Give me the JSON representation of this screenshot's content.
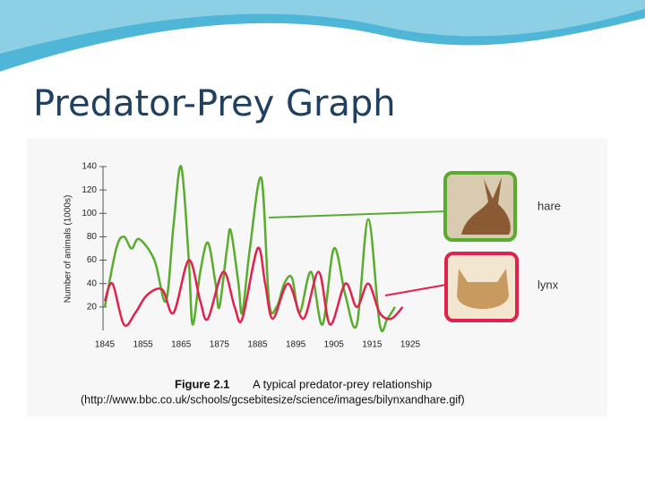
{
  "slide_title": "Predator-Prey Graph",
  "chart_data": {
    "type": "line",
    "ylabel": "Number of animals (1000s)",
    "caption_label": "Figure 2.1",
    "caption": "A typical predator-prey relationship",
    "source": "(http://www.bbc.co.uk/schools/gcsebitesize/science/images/bilynxandhare.gif)",
    "xlim": [
      1845,
      1925
    ],
    "xticks": [
      1845,
      1855,
      1865,
      1875,
      1885,
      1895,
      1905,
      1915,
      1925
    ],
    "ylim": [
      0,
      140
    ],
    "yticks": [
      20,
      40,
      60,
      80,
      100,
      120,
      140
    ],
    "series": [
      {
        "name": "hare",
        "color": "#5aac2e",
        "x": [
          1845,
          1848,
          1850,
          1852,
          1854,
          1858,
          1861,
          1863,
          1865,
          1867,
          1868,
          1870,
          1872,
          1874,
          1875,
          1877,
          1878,
          1880,
          1881,
          1883,
          1886,
          1888,
          1890,
          1892,
          1894,
          1896,
          1899,
          1902,
          1905,
          1908,
          1911,
          1914,
          1917,
          1919,
          1921
        ],
        "values": [
          20,
          70,
          80,
          70,
          78,
          60,
          25,
          90,
          140,
          60,
          5,
          50,
          75,
          40,
          20,
          70,
          85,
          40,
          15,
          70,
          130,
          25,
          20,
          40,
          45,
          15,
          50,
          5,
          70,
          30,
          5,
          95,
          5,
          10,
          20
        ]
      },
      {
        "name": "lynx",
        "color": "#e0234e",
        "x": [
          1845,
          1847,
          1850,
          1853,
          1856,
          1860,
          1863,
          1867,
          1870,
          1872,
          1876,
          1879,
          1881,
          1885,
          1887,
          1889,
          1893,
          1897,
          1901,
          1904,
          1908,
          1911,
          1914,
          1917,
          1920,
          1923
        ],
        "values": [
          25,
          40,
          5,
          15,
          30,
          35,
          15,
          60,
          25,
          10,
          50,
          20,
          10,
          70,
          40,
          10,
          40,
          10,
          50,
          5,
          40,
          20,
          40,
          15,
          10,
          20
        ]
      }
    ]
  }
}
